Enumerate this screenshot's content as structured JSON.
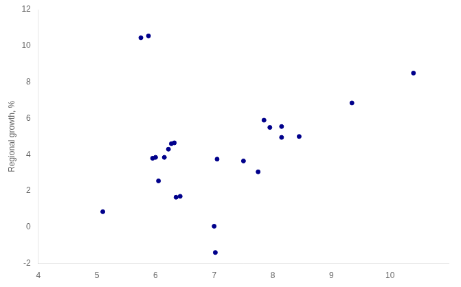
{
  "chart_data": {
    "type": "scatter",
    "x": [
      5.1,
      5.75,
      5.88,
      5.95,
      6.0,
      6.05,
      6.15,
      6.22,
      6.27,
      6.32,
      6.35,
      6.42,
      7.0,
      7.05,
      7.5,
      7.75,
      7.85,
      7.95,
      8.15,
      8.45,
      9.35,
      10.4,
      7.02,
      8.15
    ],
    "values": [
      0.85,
      10.45,
      10.55,
      3.8,
      3.85,
      2.55,
      3.85,
      4.3,
      4.6,
      4.65,
      1.65,
      1.7,
      0.05,
      3.75,
      3.65,
      3.05,
      5.9,
      5.5,
      5.55,
      5.0,
      6.85,
      8.5,
      -1.4,
      4.95
    ],
    "color": "#00008B",
    "ylabel": "Regional growth, %",
    "xlim": [
      4,
      11
    ],
    "ylim": [
      -2,
      12
    ],
    "xticks": [
      4,
      5,
      6,
      7,
      8,
      9,
      10
    ],
    "yticks": [
      -2,
      0,
      2,
      4,
      6,
      8,
      10,
      12
    ],
    "grid": false
  }
}
